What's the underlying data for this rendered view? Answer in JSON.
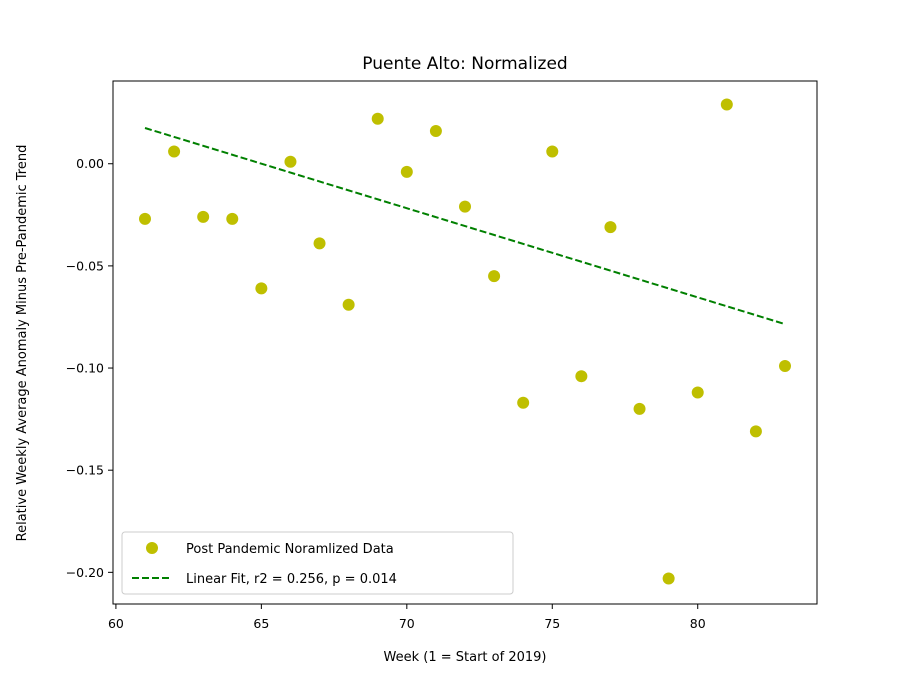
{
  "chart_data": {
    "type": "scatter",
    "title": "Puente Alto: Normalized",
    "xlabel": "Week (1 = Start of 2019)",
    "ylabel": "Relative Weekly Average Anomaly Minus Pre-Pandemic Trend",
    "xlim": [
      59.9,
      84.1
    ],
    "ylim": [
      -0.2155,
      0.0405
    ],
    "xticks": [
      60,
      65,
      70,
      75,
      80
    ],
    "yticks": [
      0.0,
      -0.05,
      -0.1,
      -0.15,
      -0.2
    ],
    "xtick_labels": [
      "60",
      "65",
      "70",
      "75",
      "80"
    ],
    "ytick_labels": [
      "0.00",
      "−0.05",
      "−0.10",
      "−0.15",
      "−0.20"
    ],
    "grid": false,
    "legend_position": "lower-left",
    "series": [
      {
        "name": "Post Pandemic Noramlized Data",
        "kind": "scatter",
        "color": "#bfbf00",
        "x": [
          61,
          62,
          63,
          64,
          65,
          66,
          67,
          68,
          69,
          70,
          71,
          72,
          73,
          74,
          75,
          76,
          77,
          78,
          79,
          80,
          81,
          82,
          83
        ],
        "y": [
          -0.027,
          0.006,
          -0.026,
          -0.027,
          -0.061,
          0.001,
          -0.039,
          -0.069,
          0.022,
          -0.004,
          0.016,
          -0.021,
          -0.055,
          -0.117,
          0.006,
          -0.104,
          -0.031,
          -0.12,
          -0.203,
          -0.112,
          0.029,
          -0.131,
          -0.099
        ]
      },
      {
        "name": "Linear Fit, r2 = 0.256, p = 0.014",
        "kind": "line",
        "style": "dashed",
        "color": "#008000",
        "x": [
          61,
          83
        ],
        "y": [
          0.0175,
          -0.0785
        ]
      }
    ]
  }
}
